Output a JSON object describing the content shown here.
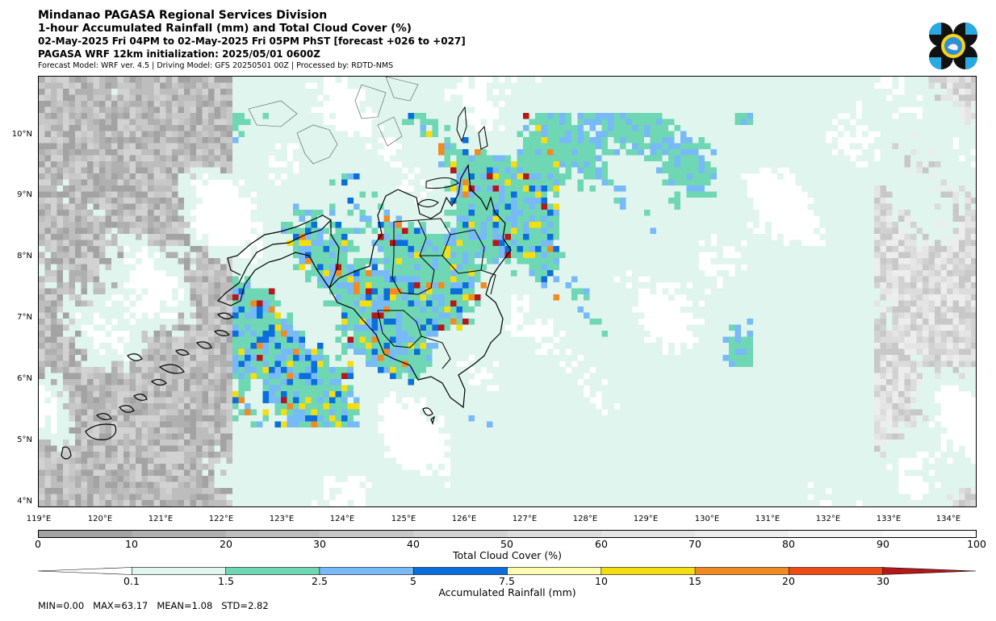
{
  "header": {
    "title": "Mindanao PAGASA Regional Services Division",
    "subtitle": "1-hour Accumulated Rainfall (mm) and Total Cloud Cover (%)",
    "period": "02-May-2025 Fri 04PM to 02-May-2025 Fri 05PM PhST [forecast +026 to +027]",
    "init": "PAGASA WRF 12km initialization: 2025/05/01 0600Z",
    "model": "Forecast Model: WRF ver. 4.5 | Driving Model: GFS 20250501 00Z | Processed by: RDTD-NMS"
  },
  "map": {
    "lat_labels": [
      "10°N",
      "9°N",
      "8°N",
      "7°N",
      "6°N",
      "5°N",
      "4°N"
    ],
    "lon_labels": [
      "119°E",
      "120°E",
      "121°E",
      "122°E",
      "123°E",
      "124°E",
      "125°E",
      "126°E",
      "127°E",
      "128°E",
      "129°E",
      "130°E",
      "131°E",
      "132°E",
      "133°E",
      "134°E"
    ]
  },
  "cloud_colorbar": {
    "label": "Total Cloud Cover (%)",
    "ticks": [
      "0",
      "10",
      "20",
      "30",
      "40",
      "50",
      "60",
      "70",
      "80",
      "90",
      "100"
    ],
    "colors": [
      "#a3a3a3",
      "#b0b0b0",
      "#bdbdbd",
      "#c8c8c8",
      "#d2d2d2",
      "#dcdcdc",
      "#e5e5e5",
      "#ededed",
      "#f4f4f4",
      "#fafafa"
    ]
  },
  "rain_colorbar": {
    "label": "Accumulated Rainfall (mm)",
    "ticks": [
      "0.1",
      "1.5",
      "2.5",
      "5",
      "7.5",
      "10",
      "15",
      "20",
      "30"
    ],
    "colors": [
      "#ffffff",
      "#dff5ee",
      "#6fd7b4",
      "#77baf7",
      "#0a6edc",
      "#fdfdb2",
      "#f5de10",
      "#f08b22",
      "#ed4c14",
      "#b51818"
    ]
  },
  "stats": {
    "min_label": "MIN=",
    "min": "0.00",
    "max_label": "MAX=",
    "max": "63.17",
    "mean_label": "MEAN=",
    "mean": "1.08",
    "std_label": "STD=",
    "std": "2.82"
  }
}
